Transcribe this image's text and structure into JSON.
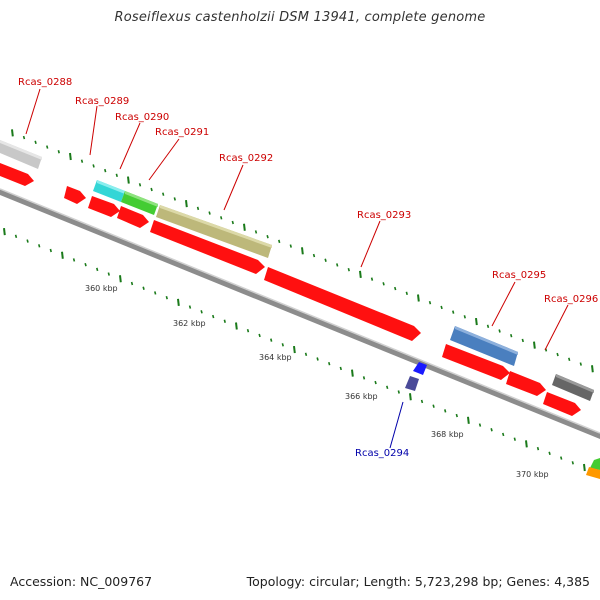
{
  "title": "Roseiflexus castenholzii DSM 13941, complete genome",
  "footer": {
    "accession": "Accession: NC_009767",
    "summary": "Topology: circular; Length: 5,723,298 bp; Genes: 4,385"
  },
  "colors": {
    "forward_label": "#cc0000",
    "reverse_label": "#0000aa",
    "cds": "#ff0000",
    "backbone": "#8c8c8c",
    "tick": "#1a7a1a"
  },
  "scale_labels": [
    "360 kbp",
    "362 kbp",
    "364 kbp",
    "366 kbp",
    "368 kbp",
    "370 kbp"
  ],
  "genes": [
    {
      "id": "Rcas_0288",
      "strand": "forward"
    },
    {
      "id": "Rcas_0289",
      "strand": "forward"
    },
    {
      "id": "Rcas_0290",
      "strand": "forward"
    },
    {
      "id": "Rcas_0291",
      "strand": "forward"
    },
    {
      "id": "Rcas_0292",
      "strand": "forward"
    },
    {
      "id": "Rcas_0293",
      "strand": "forward"
    },
    {
      "id": "Rcas_0294",
      "strand": "reverse"
    },
    {
      "id": "Rcas_0295",
      "strand": "forward"
    },
    {
      "id": "Rcas_0296",
      "strand": "forward"
    }
  ]
}
